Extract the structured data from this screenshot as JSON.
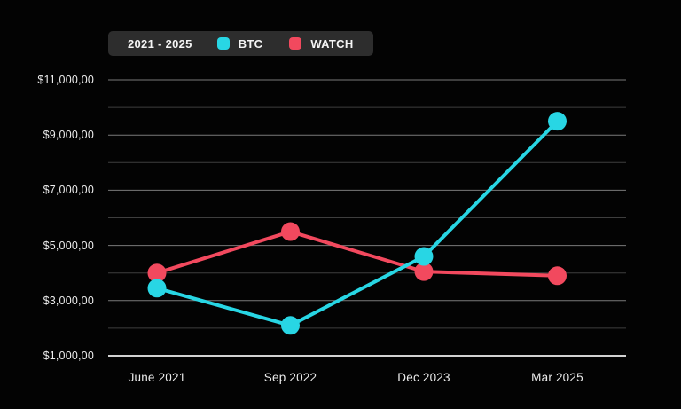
{
  "canvas": {
    "background": "#030303"
  },
  "legend": {
    "period_label": "2021 - 2025",
    "background": "#2d2d2d",
    "items": [
      {
        "id": "btc",
        "label": "BTC",
        "color": "#28D6E4"
      },
      {
        "id": "watch",
        "label": "WATCH",
        "color": "#F2495E"
      }
    ]
  },
  "chart_data": {
    "type": "line",
    "title": "",
    "xlabel": "",
    "ylabel": "",
    "categories": [
      "June 2021",
      "Sep 2022",
      "Dec 2023",
      "Mar 2025"
    ],
    "series": [
      {
        "name": "WATCH",
        "color": "#F2495E",
        "values": [
          4000,
          5500,
          4050,
          3900
        ]
      },
      {
        "name": "BTC",
        "color": "#28D6E4",
        "values": [
          3450,
          2100,
          4600,
          9500
        ]
      }
    ],
    "ylim": [
      1000,
      11000
    ],
    "grid_step": 1000,
    "grid": true,
    "legend_position": "top-left",
    "y_ticks": [
      {
        "value": 11000,
        "label": "$11,000,00"
      },
      {
        "value": 9000,
        "label": "$9,000,00"
      },
      {
        "value": 7000,
        "label": "$7,000,00"
      },
      {
        "value": 5000,
        "label": "$5,000,00"
      },
      {
        "value": 3000,
        "label": "$3,000,00"
      },
      {
        "value": 1000,
        "label": "$1,000,00"
      }
    ],
    "grid_colors": {
      "major": "#7a7a7a",
      "minor": "#3e3e3e",
      "baseline": "#d2d2d2"
    }
  }
}
